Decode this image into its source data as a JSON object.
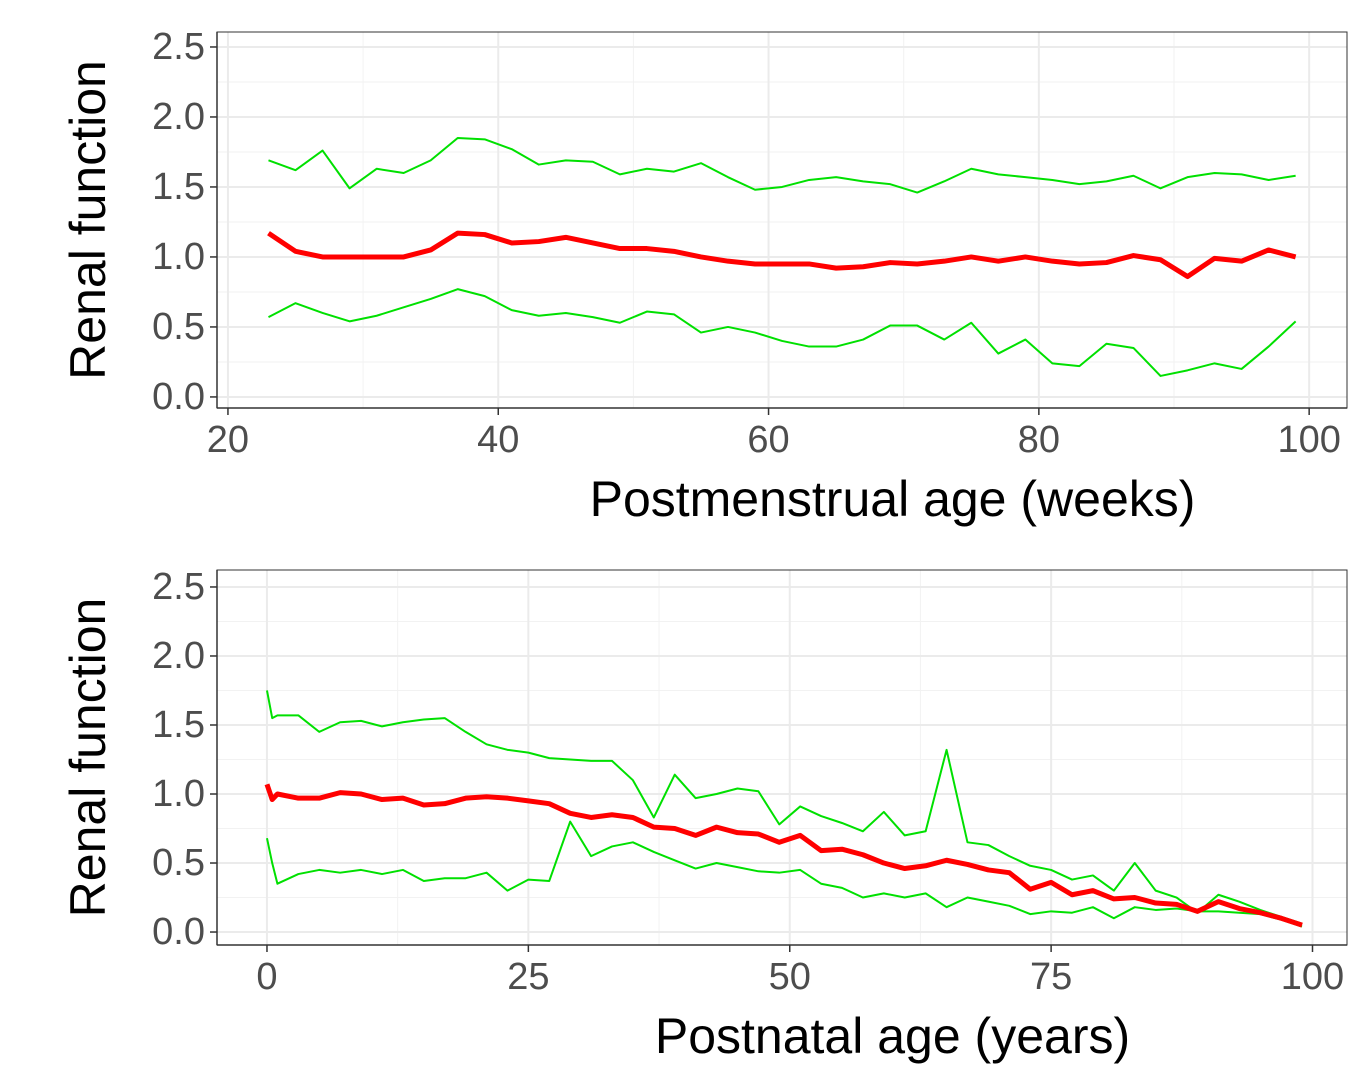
{
  "chart_data": [
    {
      "type": "line",
      "x_label": "Postmenstrual age (weeks)",
      "y_label": "Renal function",
      "x": [
        23,
        25,
        27,
        29,
        31,
        33,
        35,
        37,
        39,
        41,
        43,
        45,
        47,
        49,
        51,
        53,
        55,
        57,
        59,
        61,
        63,
        65,
        67,
        69,
        71,
        73,
        75,
        77,
        79,
        81,
        83,
        85,
        87,
        89,
        91,
        93,
        95,
        97,
        99
      ],
      "series": [
        {
          "color": "#00e000",
          "line_width": 2,
          "values": [
            1.69,
            1.62,
            1.76,
            1.49,
            1.63,
            1.6,
            1.69,
            1.85,
            1.84,
            1.77,
            1.66,
            1.69,
            1.68,
            1.59,
            1.63,
            1.61,
            1.67,
            1.57,
            1.48,
            1.5,
            1.55,
            1.57,
            1.54,
            1.52,
            1.46,
            1.54,
            1.63,
            1.59,
            1.57,
            1.55,
            1.52,
            1.54,
            1.58,
            1.49,
            1.57,
            1.6,
            1.59,
            1.55,
            1.58
          ]
        },
        {
          "color": "#00e000",
          "line_width": 2,
          "values": [
            0.57,
            0.67,
            0.6,
            0.54,
            0.58,
            0.64,
            0.7,
            0.77,
            0.72,
            0.62,
            0.58,
            0.6,
            0.57,
            0.53,
            0.61,
            0.59,
            0.46,
            0.5,
            0.46,
            0.4,
            0.36,
            0.36,
            0.41,
            0.51,
            0.51,
            0.41,
            0.53,
            0.31,
            0.41,
            0.24,
            0.22,
            0.38,
            0.35,
            0.15,
            0.19,
            0.24,
            0.2,
            0.36,
            0.54
          ]
        },
        {
          "color": "#ff0000",
          "line_width": 5,
          "values": [
            1.17,
            1.04,
            1.0,
            1.0,
            1.0,
            1.0,
            1.05,
            1.17,
            1.16,
            1.1,
            1.11,
            1.14,
            1.1,
            1.06,
            1.06,
            1.04,
            1.0,
            0.97,
            0.95,
            0.95,
            0.95,
            0.92,
            0.93,
            0.96,
            0.95,
            0.97,
            1.0,
            0.97,
            1.0,
            0.97,
            0.95,
            0.96,
            1.01,
            0.98,
            0.86,
            0.99,
            0.97,
            1.05,
            1.0
          ]
        }
      ],
      "xlim": [
        19.19,
        102.8
      ],
      "ylim": [
        -0.079,
        2.607
      ],
      "xticks": [
        20,
        40,
        60,
        80,
        100
      ],
      "yticks": [
        {
          "value": 0,
          "label": "0.0"
        },
        0.5,
        {
          "value": 1,
          "label": "1.0"
        },
        1.5,
        {
          "value": 2,
          "label": "2.0"
        },
        2.5
      ],
      "grid": true
    },
    {
      "type": "line",
      "x_label": "Postnatal age (years)",
      "y_label": "Renal function",
      "x": [
        0,
        0.5,
        1,
        3,
        5,
        7,
        9,
        11,
        13,
        15,
        17,
        19,
        21,
        23,
        25,
        27,
        29,
        31,
        33,
        35,
        37,
        39,
        41,
        43,
        45,
        47,
        49,
        51,
        53,
        55,
        57,
        59,
        61,
        63,
        65,
        67,
        69,
        71,
        73,
        75,
        77,
        79,
        81,
        83,
        85,
        87,
        89,
        91,
        93,
        95,
        97,
        99
      ],
      "series": [
        {
          "color": "#00e000",
          "line_width": 2,
          "values": [
            1.75,
            1.55,
            1.57,
            1.57,
            1.45,
            1.52,
            1.53,
            1.49,
            1.52,
            1.54,
            1.55,
            1.45,
            1.36,
            1.32,
            1.3,
            1.26,
            1.25,
            1.24,
            1.24,
            1.1,
            0.83,
            1.14,
            0.97,
            1.0,
            1.04,
            1.02,
            0.78,
            0.91,
            0.84,
            0.79,
            0.73,
            0.87,
            0.7,
            0.73,
            1.32,
            0.65,
            0.63,
            0.55,
            0.48,
            0.45,
            0.38,
            0.41,
            0.3,
            0.5,
            0.3,
            0.25,
            0.14,
            0.27,
            0.22,
            0.16,
            0.11,
            0.06
          ]
        },
        {
          "color": "#00e000",
          "line_width": 2,
          "values": [
            0.68,
            0.5,
            0.35,
            0.42,
            0.45,
            0.43,
            0.45,
            0.42,
            0.45,
            0.37,
            0.39,
            0.39,
            0.43,
            0.3,
            0.38,
            0.37,
            0.8,
            0.55,
            0.62,
            0.65,
            0.58,
            0.52,
            0.46,
            0.5,
            0.47,
            0.44,
            0.43,
            0.45,
            0.35,
            0.32,
            0.25,
            0.28,
            0.25,
            0.28,
            0.18,
            0.25,
            0.22,
            0.19,
            0.13,
            0.15,
            0.14,
            0.18,
            0.1,
            0.18,
            0.16,
            0.17,
            0.15,
            0.15,
            0.14,
            0.13,
            0.09,
            0.04
          ]
        },
        {
          "color": "#ff0000",
          "line_width": 5,
          "values": [
            1.07,
            0.96,
            1.0,
            0.97,
            0.97,
            1.01,
            1.0,
            0.96,
            0.97,
            0.92,
            0.93,
            0.97,
            0.98,
            0.97,
            0.95,
            0.93,
            0.86,
            0.83,
            0.85,
            0.83,
            0.76,
            0.75,
            0.7,
            0.76,
            0.72,
            0.71,
            0.65,
            0.7,
            0.59,
            0.6,
            0.56,
            0.5,
            0.46,
            0.48,
            0.52,
            0.49,
            0.45,
            0.43,
            0.31,
            0.36,
            0.27,
            0.3,
            0.24,
            0.25,
            0.21,
            0.2,
            0.15,
            0.22,
            0.17,
            0.14,
            0.1,
            0.05
          ]
        }
      ],
      "xlim": [
        -4.78,
        103.3
      ],
      "ylim": [
        -0.094,
        2.623
      ],
      "xticks": [
        0,
        25,
        50,
        75,
        100
      ],
      "yticks": [
        {
          "value": 0,
          "label": "0.0"
        },
        0.5,
        {
          "value": 1,
          "label": "1.0"
        },
        1.5,
        {
          "value": 2,
          "label": "2.0"
        },
        2.5
      ],
      "grid": true
    }
  ]
}
